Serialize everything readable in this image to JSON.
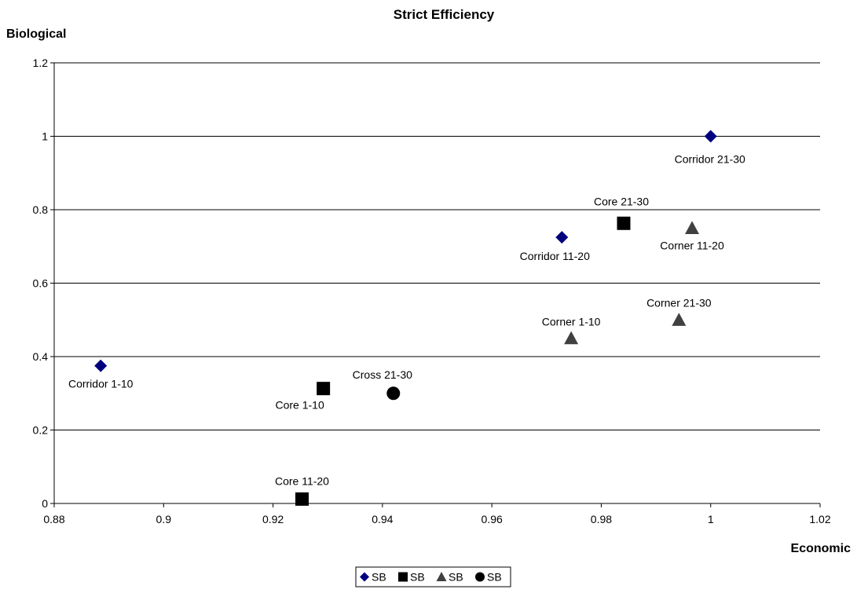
{
  "chart_data": {
    "type": "scatter",
    "title": "Strict Efficiency",
    "xlabel": "Economic",
    "ylabel": "Biological",
    "xlim": [
      0.88,
      1.02
    ],
    "ylim": [
      0,
      1.2
    ],
    "x_ticks": [
      "0.88",
      "0.9",
      "0.92",
      "0.94",
      "0.96",
      "0.98",
      "1",
      "1.02"
    ],
    "y_ticks": [
      "0",
      "0.2",
      "0.4",
      "0.6",
      "0.8",
      "1",
      "1.2"
    ],
    "grid": "horizontal",
    "legend_position": "bottom",
    "series": [
      {
        "name": "SB",
        "marker": "diamond",
        "color": "#00007f",
        "points": [
          {
            "x": 0.8885,
            "y": 0.375,
            "label": "Corridor 1-10"
          },
          {
            "x": 0.9728,
            "y": 0.725,
            "label": "Corridor 11-20"
          },
          {
            "x": 1.0,
            "y": 1.0,
            "label": "Corridor 21-30"
          }
        ]
      },
      {
        "name": "SB",
        "marker": "square",
        "color": "#000000",
        "points": [
          {
            "x": 0.9292,
            "y": 0.313,
            "label": "Core 1-10"
          },
          {
            "x": 0.9253,
            "y": 0.012,
            "label": "Core 11-20"
          },
          {
            "x": 0.9841,
            "y": 0.763,
            "label": "Core 21-30"
          }
        ]
      },
      {
        "name": "SB",
        "marker": "triangle",
        "color": "#404040",
        "points": [
          {
            "x": 0.9745,
            "y": 0.45,
            "label": "Corner 1-10"
          },
          {
            "x": 0.9966,
            "y": 0.75,
            "label": "Corner 11-20"
          },
          {
            "x": 0.9942,
            "y": 0.5,
            "label": "Corner 21-30"
          }
        ]
      },
      {
        "name": "SB",
        "marker": "circle",
        "color": "#000000",
        "points": [
          {
            "x": 0.942,
            "y": 0.3,
            "label": "Cross 21-30"
          }
        ]
      }
    ]
  }
}
